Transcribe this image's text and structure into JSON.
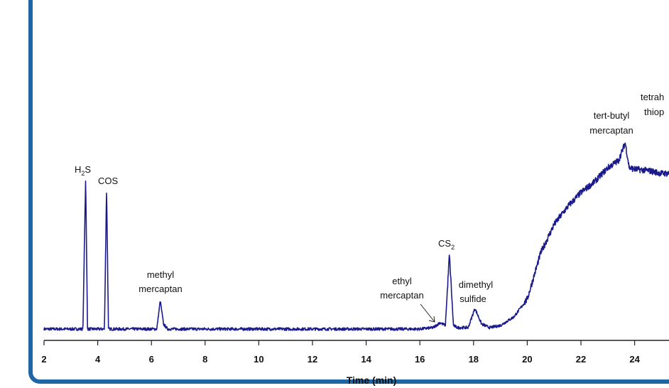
{
  "colors": {
    "trace": "#1a1a8c",
    "frame": "#1f66a5",
    "axis": "#222222"
  },
  "chart_data": {
    "type": "line",
    "title": "",
    "xlabel": "Time (min)",
    "ylabel": "",
    "xlim": [
      2,
      25.4
    ],
    "ylim": [
      0,
      360
    ],
    "x_ticks": [
      "2",
      "4",
      "6",
      "8",
      "10",
      "12",
      "14",
      "16",
      "18",
      "20",
      "22",
      "24"
    ],
    "grid": false,
    "legend": "none",
    "series": [
      {
        "name": "",
        "x": [
          2,
          3.45,
          3.55,
          3.62,
          3.7,
          4.25,
          4.33,
          4.4,
          4.5,
          6.2,
          6.33,
          6.45,
          6.6,
          16.0,
          16.5,
          16.75,
          16.95,
          17.1,
          17.25,
          17.4,
          17.8,
          18.05,
          18.3,
          18.6,
          19.0,
          19.5,
          20.0,
          20.5,
          21.0,
          21.5,
          22.0,
          22.5,
          23.0,
          23.4,
          23.65,
          23.8,
          24.0,
          24.5,
          25.0,
          25.4
        ],
        "y": [
          3,
          3,
          218,
          3,
          3,
          3,
          201,
          3,
          3,
          3,
          43,
          10,
          3,
          3,
          5,
          12,
          8,
          108,
          8,
          5,
          5,
          32,
          10,
          5,
          8,
          20,
          45,
          110,
          150,
          175,
          195,
          210,
          230,
          240,
          265,
          230,
          228,
          226,
          222,
          222
        ]
      }
    ],
    "annotations": [
      {
        "text": "H2S",
        "x": 3.55,
        "y": 218
      },
      {
        "text": "COS",
        "x": 4.33,
        "y": 201
      },
      {
        "text": "methyl mercaptan",
        "x": 6.33,
        "y": 43
      },
      {
        "text": "ethyl mercaptan",
        "x": 16.75,
        "y": 12
      },
      {
        "text": "CS2",
        "x": 17.1,
        "y": 108
      },
      {
        "text": "dimethyl sulfide",
        "x": 18.05,
        "y": 32
      },
      {
        "text": "tert-butyl mercaptan",
        "x": 23.65,
        "y": 265
      },
      {
        "text": "tetrah thiop",
        "x": 25.0,
        "y": 280
      }
    ]
  },
  "labels": {
    "h2s_main": "H",
    "h2s_sub": "2",
    "h2s_tail": "S",
    "cos": "COS",
    "methyl_line1": "methyl",
    "methyl_line2": "mercaptan",
    "ethyl_line1": "ethyl",
    "ethyl_line2": "mercaptan",
    "cs2_main": "CS",
    "cs2_sub": "2",
    "dimethyl_line1": "dimethyl",
    "dimethyl_line2": "sulfide",
    "tbutyl_line1": "tert-butyl",
    "tbutyl_line2": "mercaptan",
    "tetra_line1": "tetrah",
    "tetra_line2": "thiop"
  }
}
